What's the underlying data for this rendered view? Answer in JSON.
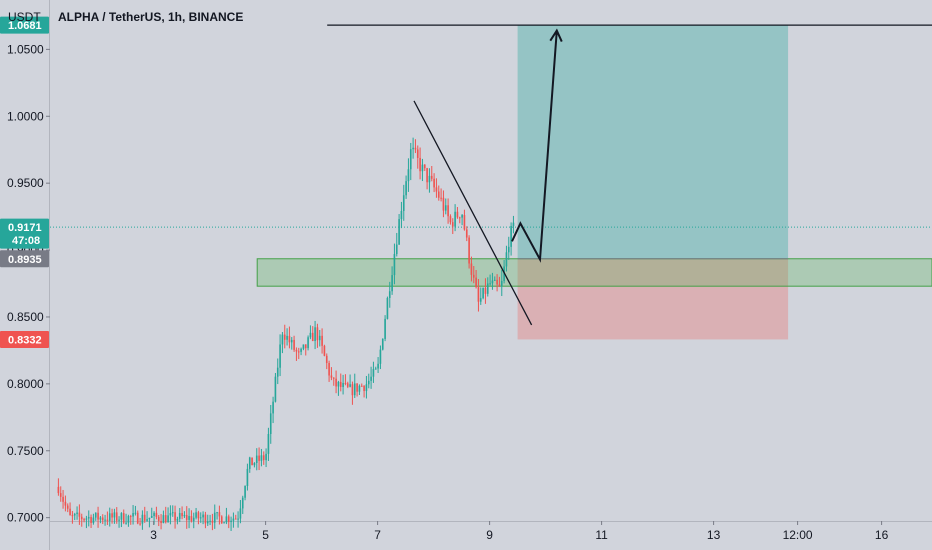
{
  "header": {
    "currency": "USDT",
    "symbol_line": "ALPHA / TetherUS, 1h, BINANCE"
  },
  "price_tags": {
    "target": {
      "value": "1.0681",
      "color": "#26a69a"
    },
    "current": {
      "value": "0.9171",
      "countdown": "47:08",
      "color": "#26a69a"
    },
    "entry": {
      "value": "0.8935",
      "color": "#787b86"
    },
    "stop": {
      "value": "0.8332",
      "color": "#ef5350"
    }
  },
  "colors": {
    "background": "#d1d4dc",
    "up_candle": "#26a69a",
    "down_candle": "#ef5350",
    "profit_zone": "#26a69a",
    "loss_zone": "#ef5350",
    "support_zone": "#4caf50",
    "drawing": "#131722"
  },
  "chart_data": {
    "type": "candlestick",
    "title": "ALPHA / TetherUS, 1h, BINANCE",
    "ylabel": "USDT",
    "ylim": [
      0.6975,
      1.0869
    ],
    "y_ticks": [
      "0.7000",
      "0.7500",
      "0.8000",
      "0.8500",
      "0.9000",
      "0.9500",
      "1.0000",
      "1.0500"
    ],
    "x_ticks": [
      "3",
      "5",
      "7",
      "9",
      "11",
      "13",
      "12:00",
      "16"
    ],
    "x_tick_days": [
      3,
      5,
      7,
      9,
      11,
      13,
      14.5,
      16
    ],
    "xlim_days": [
      1.15,
      16.9
    ],
    "days_per_candle": 0.04167,
    "series_start_day": 1.3,
    "ohlc_samples": [
      {
        "day": 1.3,
        "price": 0.723
      },
      {
        "day": 1.5,
        "price": 0.7
      },
      {
        "day": 4.5,
        "price": 0.7
      },
      {
        "day": 4.7,
        "price": 0.74
      },
      {
        "day": 5.0,
        "price": 0.745
      },
      {
        "day": 5.3,
        "price": 0.84
      },
      {
        "day": 5.6,
        "price": 0.82
      },
      {
        "day": 5.9,
        "price": 0.84
      },
      {
        "day": 6.2,
        "price": 0.8
      },
      {
        "day": 6.5,
        "price": 0.795
      },
      {
        "day": 6.8,
        "price": 0.8
      },
      {
        "day": 7.0,
        "price": 0.81
      },
      {
        "day": 7.2,
        "price": 0.87
      },
      {
        "day": 7.45,
        "price": 0.94
      },
      {
        "day": 7.6,
        "price": 0.975
      },
      {
        "day": 7.8,
        "price": 0.96
      },
      {
        "day": 8.1,
        "price": 0.94
      },
      {
        "day": 8.3,
        "price": 0.92
      },
      {
        "day": 8.5,
        "price": 0.93
      },
      {
        "day": 8.65,
        "price": 0.89
      },
      {
        "day": 8.8,
        "price": 0.86
      },
      {
        "day": 9.0,
        "price": 0.875
      },
      {
        "day": 9.2,
        "price": 0.87
      },
      {
        "day": 9.35,
        "price": 0.91
      },
      {
        "day": 9.45,
        "price": 0.9171
      }
    ],
    "position": {
      "start_day": 9.5,
      "end_day": 14.33,
      "entry": 0.8935,
      "target": 1.0681,
      "stop": 0.8332
    },
    "support_zone": {
      "start_day": 4.85,
      "top": 0.8935,
      "bottom": 0.873
    },
    "trendline": [
      {
        "day": 7.65,
        "price": 1.0115
      },
      {
        "day": 9.75,
        "price": 0.844
      }
    ],
    "target_line": {
      "start_day": 6.1,
      "price": 1.0681
    },
    "projection_path": [
      {
        "day": 9.4,
        "price": 0.9065
      },
      {
        "day": 9.55,
        "price": 0.92
      },
      {
        "day": 9.9,
        "price": 0.893
      },
      {
        "day": 10.2,
        "price": 1.064
      }
    ],
    "grid": false
  }
}
